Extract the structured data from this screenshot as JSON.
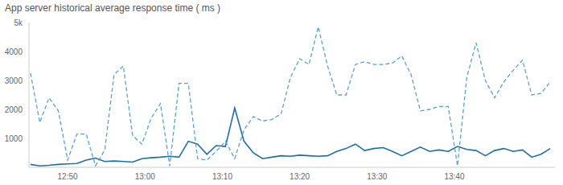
{
  "chart_data": {
    "type": "line",
    "title": "App server historical average response time ( ms )",
    "x": [
      765.2,
      766.4,
      767.6,
      768.8,
      770,
      771.2,
      772.4,
      773.6,
      774.8,
      776,
      777.2,
      778.4,
      779.6,
      780.8,
      782,
      783.2,
      784.4,
      785.6,
      786.8,
      788,
      789.2,
      790.4,
      791.6,
      792.8,
      794,
      795.2,
      796.4,
      797.6,
      798.8,
      800,
      801.2,
      802.4,
      803.6,
      804.8,
      806,
      807.2,
      808.4,
      809.6,
      810.8,
      812,
      813.2,
      814.4,
      815.6,
      816.8,
      818,
      819.2,
      820.4,
      821.6,
      822.8,
      824,
      825.2,
      826.4,
      827.6,
      828.8,
      830,
      831.2,
      832.4
    ],
    "series": [
      {
        "color": "#1d6fa5",
        "line_style": "solid",
        "values": [
          100,
          50,
          70,
          100,
          120,
          130,
          250,
          320,
          200,
          220,
          200,
          180,
          300,
          330,
          350,
          380,
          350,
          900,
          800,
          450,
          750,
          720,
          2050,
          900,
          500,
          300,
          350,
          400,
          380,
          420,
          400,
          380,
          400,
          550,
          650,
          800,
          580,
          650,
          680,
          550,
          400,
          550,
          700,
          550,
          600,
          550,
          720,
          620,
          580,
          400,
          580,
          650,
          550,
          600,
          350,
          450,
          650
        ]
      },
      {
        "color": "#5aa0d6",
        "line_style": "dashed",
        "values": [
          3250,
          1550,
          2400,
          1950,
          250,
          1150,
          1150,
          50,
          600,
          3200,
          3500,
          1100,
          800,
          1700,
          2200,
          50,
          2900,
          2900,
          300,
          250,
          550,
          900,
          300,
          1300,
          1750,
          1600,
          1650,
          1850,
          3100,
          3750,
          3550,
          4850,
          3500,
          2500,
          2500,
          3550,
          3650,
          3550,
          3550,
          3600,
          3850,
          3200,
          1950,
          2000,
          2100,
          2100,
          50,
          3100,
          4300,
          3000,
          2400,
          2950,
          3350,
          3700,
          2500,
          2550,
          2950
        ]
      }
    ],
    "xlim": [
      765,
      833
    ],
    "xticks": [
      {
        "value": 770,
        "label": "12:50"
      },
      {
        "value": 780,
        "label": "13:00"
      },
      {
        "value": 790,
        "label": "13:10"
      },
      {
        "value": 800,
        "label": "13:20"
      },
      {
        "value": 810,
        "label": "13:30"
      },
      {
        "value": 820,
        "label": "13:40"
      }
    ],
    "ylim": [
      0,
      5000
    ],
    "yticks": [
      1000,
      2000,
      3000,
      4000,
      {
        "value": 5000,
        "label": "5k"
      }
    ],
    "grid": false
  }
}
